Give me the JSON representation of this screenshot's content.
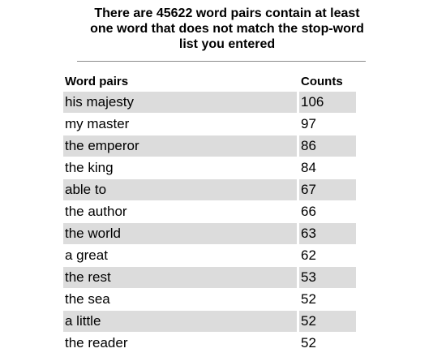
{
  "heading": {
    "line1": "There are 45622 word pairs contain at least",
    "line2": "one word that does not match the stop-word",
    "line3": "list you entered"
  },
  "table": {
    "columns": [
      "Word pairs",
      "Counts"
    ],
    "rows": [
      {
        "pair": "his majesty",
        "count": "106"
      },
      {
        "pair": "my master",
        "count": "97"
      },
      {
        "pair": "the emperor",
        "count": "86"
      },
      {
        "pair": "the king",
        "count": "84"
      },
      {
        "pair": "able to",
        "count": "67"
      },
      {
        "pair": "the author",
        "count": "66"
      },
      {
        "pair": "the world",
        "count": "63"
      },
      {
        "pair": "a great",
        "count": "62"
      },
      {
        "pair": "the rest",
        "count": "53"
      },
      {
        "pair": "the sea",
        "count": "52"
      },
      {
        "pair": "a little",
        "count": "52"
      },
      {
        "pair": "the reader",
        "count": "52"
      }
    ]
  },
  "colors": {
    "row_shade": "#dcdcdc",
    "divider": "#8c8c8c"
  }
}
